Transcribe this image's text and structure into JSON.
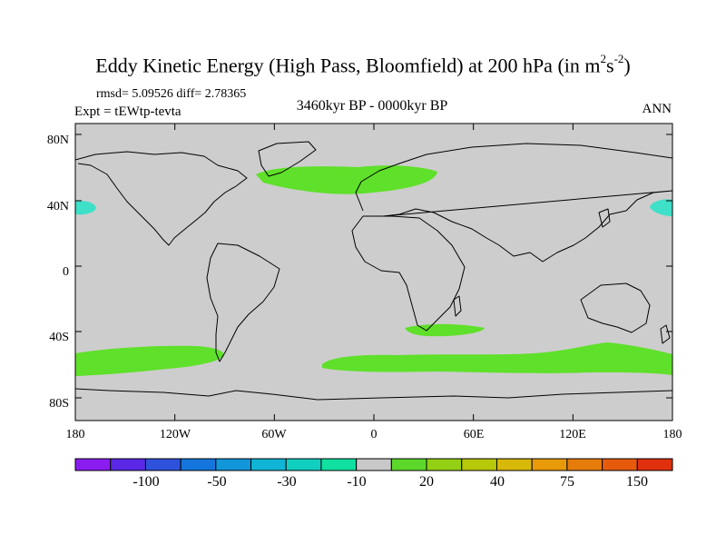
{
  "title_main": "Eddy Kinetic Energy (High Pass, Bloomfield) at 200 hPa (in m",
  "title_unit_exp1": "2",
  "title_unit_s": "s",
  "title_unit_exp2": "-2",
  "title_close": ")",
  "stats": "rmsd= 5.09526  diff= 2.78365",
  "experiment": "Expt = tEWtp-tevta",
  "period": "3460kyr BP - 0000kyr BP",
  "season": "ANN",
  "lat_ticks": [
    "80N",
    "40N",
    "0",
    "40S",
    "80S"
  ],
  "lon_ticks": [
    "180",
    "120W",
    "60W",
    "0",
    "60E",
    "120E",
    "180"
  ],
  "colorbar": {
    "colors": [
      "#8a1cf0",
      "#5a28e6",
      "#2f52dc",
      "#1476dc",
      "#1296da",
      "#10b4d4",
      "#10cfc0",
      "#10e0a0",
      "#c8c8c8",
      "#5cd82a",
      "#94d014",
      "#b8c80a",
      "#d8b808",
      "#e89a08",
      "#e67c0a",
      "#e65a0c",
      "#e0300e"
    ],
    "labels": [
      "-100",
      "-50",
      "-30",
      "-10",
      "20",
      "40",
      "75",
      "150"
    ]
  },
  "palette": {
    "land_ocean": "#cdcdcd",
    "positive": "#5fe02a",
    "negative": "#3ee0c8",
    "coast": "#000000"
  }
}
